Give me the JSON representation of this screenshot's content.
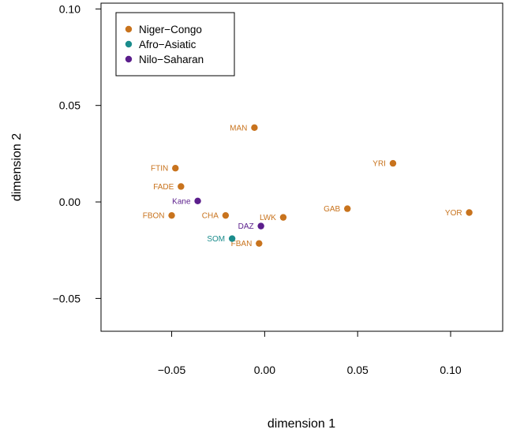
{
  "chart_data": {
    "type": "scatter",
    "xlabel": "dimension 1",
    "ylabel": "dimension 2",
    "xlim": [
      -0.088,
      0.128
    ],
    "ylim": [
      -0.067,
      0.103
    ],
    "xticks": [
      -0.05,
      0.0,
      0.05,
      0.1
    ],
    "xtick_labels": [
      "−0.05",
      "0.00",
      "0.05",
      "0.10"
    ],
    "yticks": [
      -0.05,
      0.0,
      0.05,
      0.1
    ],
    "ytick_labels": [
      "−0.05",
      "0.00",
      "0.05",
      "0.10"
    ],
    "legend_position": "top-left",
    "grid": false,
    "series": [
      {
        "name": "Niger−Congo",
        "color": "#c8731d",
        "points": [
          {
            "label": "MAN",
            "x": -0.0055,
            "y": 0.0385
          },
          {
            "label": "FTIN",
            "x": -0.048,
            "y": 0.0175
          },
          {
            "label": "YRI",
            "x": 0.069,
            "y": 0.02
          },
          {
            "label": "FADE",
            "x": -0.045,
            "y": 0.008
          },
          {
            "label": "FBON",
            "x": -0.05,
            "y": -0.007
          },
          {
            "label": "CHA",
            "x": -0.021,
            "y": -0.007
          },
          {
            "label": "LWK",
            "x": 0.01,
            "y": -0.008
          },
          {
            "label": "GAB",
            "x": 0.0445,
            "y": -0.0035
          },
          {
            "label": "YOR",
            "x": 0.11,
            "y": -0.0055
          },
          {
            "label": "FBAN",
            "x": -0.003,
            "y": -0.0215
          }
        ]
      },
      {
        "name": "Afro−Asiatic",
        "color": "#1a8c8c",
        "points": [
          {
            "label": "SOM",
            "x": -0.0175,
            "y": -0.019
          }
        ]
      },
      {
        "name": "Nilo−Saharan",
        "color": "#5b1e8c",
        "points": [
          {
            "label": "Kane",
            "x": -0.036,
            "y": 0.0005
          },
          {
            "label": "DAZ",
            "x": -0.002,
            "y": -0.0125
          }
        ]
      }
    ]
  }
}
